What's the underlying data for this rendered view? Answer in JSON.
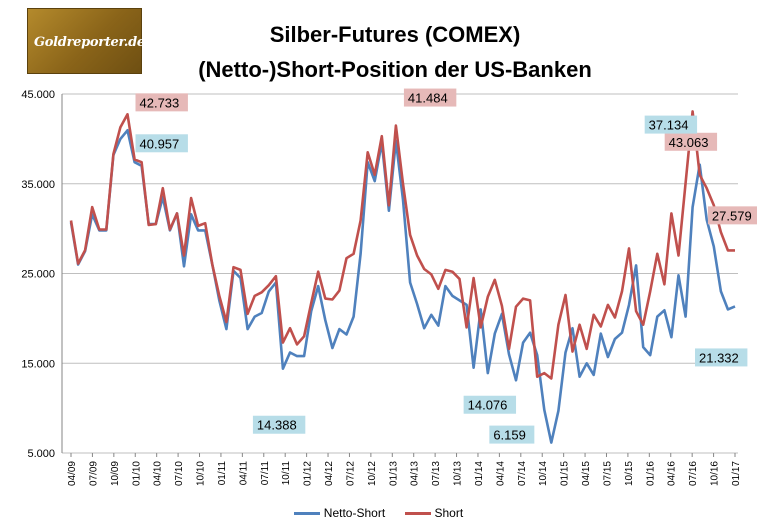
{
  "logo": {
    "text": "Goldreporter.de"
  },
  "title": {
    "line1": "Silber-Futures (COMEX)",
    "line2": "(Netto-)Short-Position der US-Banken"
  },
  "colors": {
    "netto": "#4f81bd",
    "short": "#c0504d",
    "label_blue_bg": "#b7dde8",
    "label_red_bg": "#e6b9b8",
    "grid": "#bfbfbf"
  },
  "legend": [
    {
      "name": "Netto-Short",
      "color": "#4f81bd"
    },
    {
      "name": "Short",
      "color": "#c0504d"
    }
  ],
  "chart_data": {
    "type": "line",
    "title": "Silber-Futures (COMEX) (Netto-)Short-Position der US-Banken",
    "xlabel": "",
    "ylabel": "",
    "ylim": [
      5000,
      45000
    ],
    "y_ticks": [
      "5.000",
      "15.000",
      "25.000",
      "35.000",
      "45.000"
    ],
    "y_tick_values": [
      5000,
      15000,
      25000,
      35000,
      45000
    ],
    "x_tick_labels": [
      "04/09",
      "07/09",
      "10/09",
      "01/10",
      "04/10",
      "07/10",
      "10/10",
      "01/11",
      "04/11",
      "07/11",
      "10/11",
      "01/12",
      "04/12",
      "07/12",
      "10/12",
      "01/13",
      "04/13",
      "07/13",
      "10/13",
      "01/14",
      "04/14",
      "07/14",
      "10/14",
      "01/15",
      "04/15",
      "07/15",
      "10/15",
      "01/16",
      "04/16",
      "07/16",
      "10/16",
      "01/17"
    ],
    "grid": true,
    "legend_position": "bottom",
    "series": [
      {
        "name": "Netto-Short",
        "values": [
          30700,
          26000,
          27500,
          31600,
          29800,
          29800,
          38200,
          40000,
          40957,
          37400,
          37000,
          30500,
          30500,
          33500,
          29800,
          31700,
          25800,
          31600,
          29800,
          29800,
          26000,
          22000,
          18800,
          25300,
          24500,
          18800,
          20200,
          20600,
          23000,
          24000,
          14388,
          16200,
          15800,
          15800,
          20800,
          23600,
          19800,
          16700,
          18800,
          18200,
          20200,
          27200,
          37400,
          35300,
          39600,
          32000,
          39800,
          33200,
          24000,
          21600,
          18900,
          20400,
          19200,
          23600,
          22500,
          22000,
          21500,
          14500,
          21000,
          13900,
          18300,
          20500,
          16000,
          13100,
          17300,
          18400,
          15900,
          9800,
          6159,
          9700,
          16200,
          18900,
          13500,
          15000,
          13700,
          18300,
          15700,
          17700,
          18400,
          21500,
          25900,
          16800,
          15900,
          20200,
          20900,
          17900,
          24800,
          20200,
          32400,
          37134,
          31000,
          28000,
          23000,
          21000,
          21332
        ]
      },
      {
        "name": "Short",
        "values": [
          30900,
          26100,
          27600,
          32400,
          29900,
          29900,
          38300,
          41300,
          42733,
          37700,
          37400,
          30400,
          30500,
          34500,
          29900,
          31700,
          27000,
          33400,
          30300,
          30600,
          26000,
          22500,
          19600,
          25700,
          25400,
          20500,
          22500,
          22900,
          23700,
          24700,
          17300,
          18900,
          17100,
          18000,
          21700,
          25200,
          22200,
          22100,
          23100,
          26700,
          27200,
          30900,
          38500,
          36000,
          40300,
          32600,
          41484,
          35000,
          29300,
          27000,
          25500,
          24900,
          23300,
          25400,
          25200,
          24400,
          19000,
          24500,
          19000,
          22400,
          24300,
          21400,
          16600,
          21300,
          22200,
          22000,
          13500,
          13900,
          13300,
          19300,
          22600,
          16300,
          19300,
          16600,
          20400,
          19100,
          21500,
          20100,
          23000,
          27800,
          20800,
          19300,
          23000,
          27200,
          23800,
          31700,
          27000,
          35100,
          43063,
          36000,
          34500,
          32600,
          29600,
          27579,
          27579
        ]
      }
    ],
    "annotations": [
      {
        "text": "42.733",
        "series": "Short",
        "color": "red"
      },
      {
        "text": "40.957",
        "series": "Netto-Short",
        "color": "blue"
      },
      {
        "text": "41.484",
        "series": "Short",
        "color": "red"
      },
      {
        "text": "14.388",
        "series": "Netto-Short",
        "color": "blue"
      },
      {
        "text": "14.076",
        "series": "Netto-Short",
        "color": "blue"
      },
      {
        "text": "6.159",
        "series": "Netto-Short",
        "color": "blue"
      },
      {
        "text": "43.063",
        "series": "Short",
        "color": "red"
      },
      {
        "text": "37.134",
        "series": "Netto-Short",
        "color": "blue"
      },
      {
        "text": "27.579",
        "series": "Short",
        "color": "red"
      },
      {
        "text": "21.332",
        "series": "Netto-Short",
        "color": "blue"
      }
    ]
  }
}
